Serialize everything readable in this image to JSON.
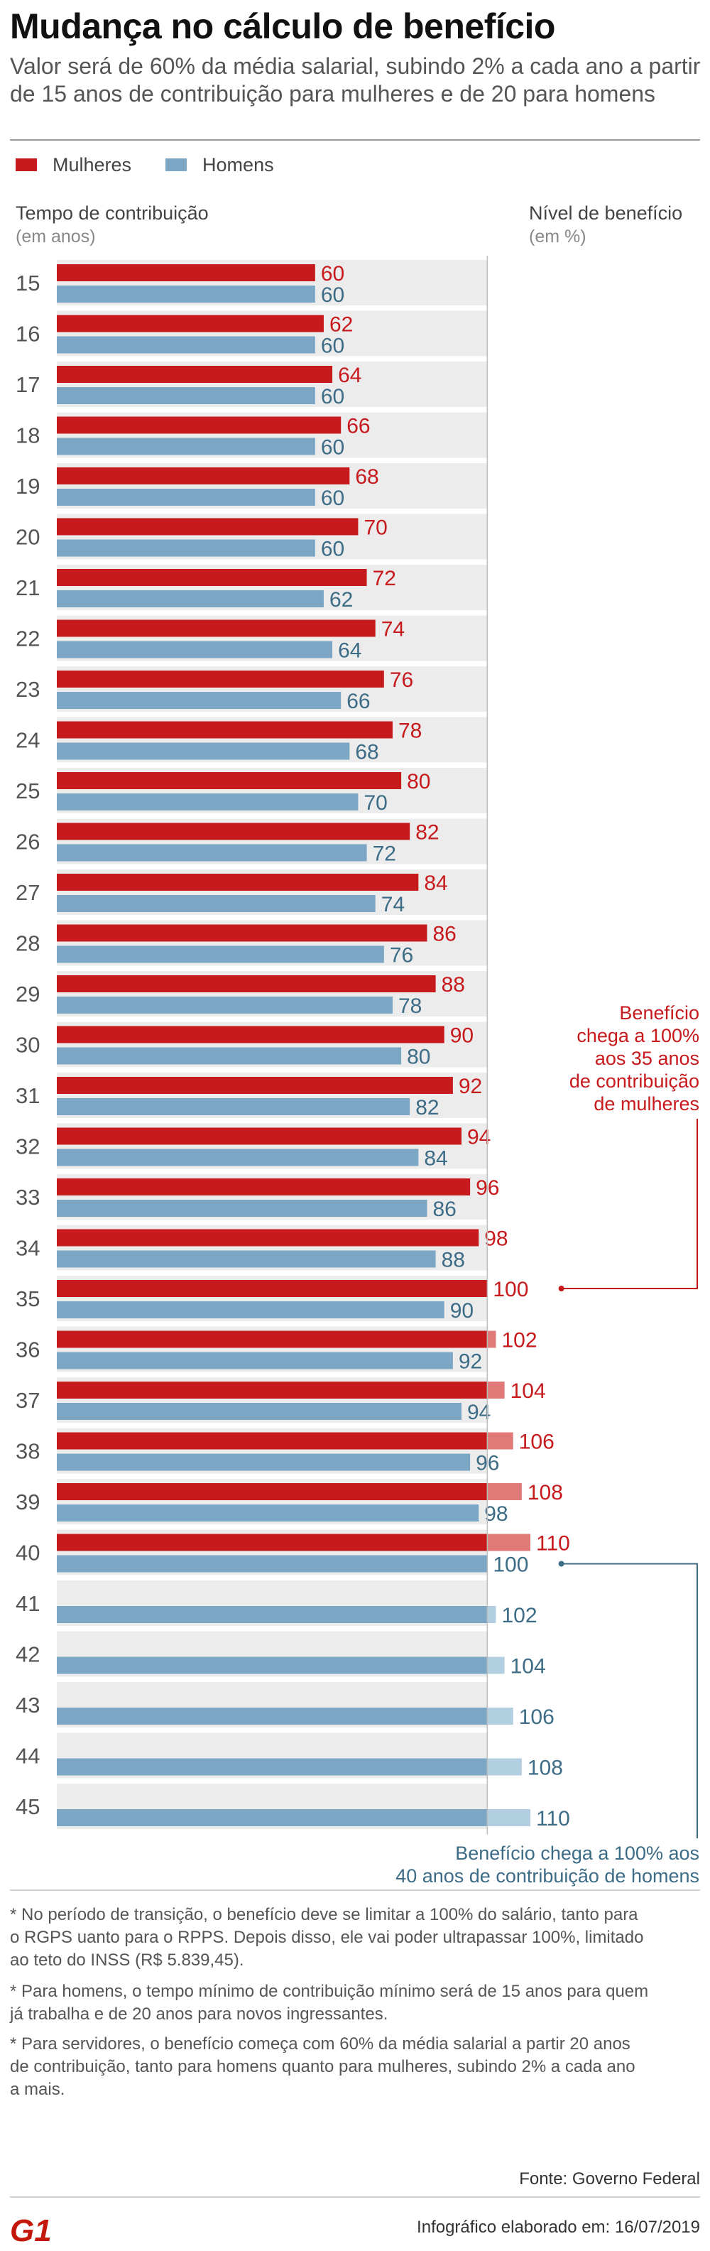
{
  "title": "Mudança no cálculo de benefício",
  "subtitle": "Valor será de 60% da média salarial, subindo 2% a cada ano a partir de 15 anos de contribuição para mulheres e de 20 para homens",
  "colors": {
    "women": "#c71a1d",
    "women_above_100": "#e07a78",
    "men": "#7ba6c4",
    "men_above_100": "#b2cfe1",
    "men_label": "#3d6c86",
    "band": "#ececec",
    "reference_line": "#bdbdbd"
  },
  "chart_data": {
    "type": "bar",
    "orientation": "horizontal",
    "y_axis_title": "Tempo de contribuição",
    "y_axis_unit": "(em anos)",
    "value_axis_title": "Nível de benefício",
    "value_axis_unit": "(em %)",
    "reference_value": 100,
    "legend_position": "top-left",
    "categories": [
      15,
      16,
      17,
      18,
      19,
      20,
      21,
      22,
      23,
      24,
      25,
      26,
      27,
      28,
      29,
      30,
      31,
      32,
      33,
      34,
      35,
      36,
      37,
      38,
      39,
      40,
      41,
      42,
      43,
      44,
      45
    ],
    "series": [
      {
        "name": "Mulheres",
        "values": [
          60,
          62,
          64,
          66,
          68,
          70,
          72,
          74,
          76,
          78,
          80,
          82,
          84,
          86,
          88,
          90,
          92,
          94,
          96,
          98,
          100,
          102,
          104,
          106,
          108,
          110,
          null,
          null,
          null,
          null,
          null
        ]
      },
      {
        "name": "Homens",
        "values": [
          60,
          60,
          60,
          60,
          60,
          60,
          62,
          64,
          66,
          68,
          70,
          72,
          74,
          76,
          78,
          80,
          82,
          84,
          86,
          88,
          90,
          92,
          94,
          96,
          98,
          100,
          102,
          104,
          106,
          108,
          110
        ]
      }
    ],
    "annotations": [
      {
        "series": "Mulheres",
        "category": 35,
        "text": "Benefício chega a 100% aos 35 anos de contribuição de mulheres"
      },
      {
        "series": "Homens",
        "category": 40,
        "text": "Benefício chega a 100% aos 40 anos de contribuição de homens"
      }
    ]
  },
  "footnotes": [
    "* No período de transição, o benefício deve se limitar a 100% do salário, tanto para o RGPS uanto para o RPPS. Depois disso, ele vai poder ultrapassar 100%, limitado ao teto do INSS (R$ 5.839,45).",
    "* Para homens, o tempo mínimo de contribuição mínimo será de 15 anos para quem já trabalha e de 20 anos para novos ingressantes.",
    "* Para servidores, o benefício começa com 60% da média salarial a partir 20 anos de contribuição, tanto para homens quanto para mulheres, subindo 2% a cada ano a mais."
  ],
  "source": "Fonte: Governo Federal",
  "date_line": "Infográfico elaborado em: 16/07/2019",
  "logo_text": "G1"
}
